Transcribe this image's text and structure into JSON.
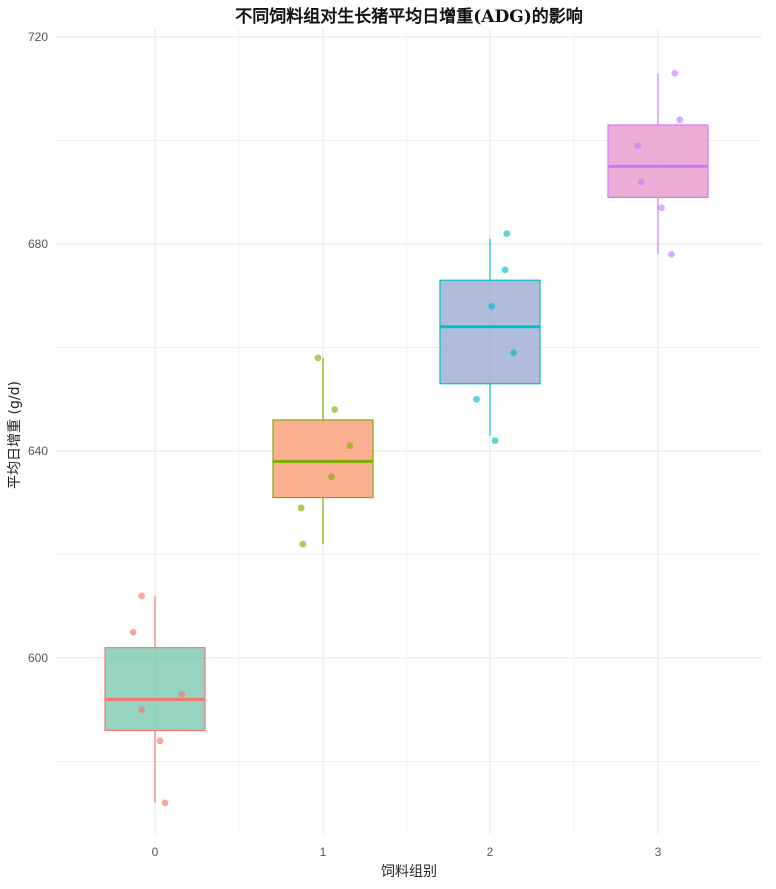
{
  "chart_data": {
    "type": "boxplot",
    "title": "不同饲料组对生长猪平均日增重(ADG)的影响",
    "xlabel": "饲料组别",
    "ylabel": "平均日增重 (g/d)",
    "categories": [
      "0",
      "1",
      "2",
      "3"
    ],
    "ylim": [
      572,
      724
    ],
    "y_ticks": [
      600,
      640,
      680,
      720
    ],
    "grid": true,
    "legend": "none",
    "boxes": [
      {
        "category": "0",
        "q1": 586,
        "median": 592,
        "q3": 602,
        "whisker_low": 572,
        "whisker_high": 612,
        "fill": "#66c2a5",
        "line": "#f8766d"
      },
      {
        "category": "1",
        "q1": 631,
        "median": 638,
        "q3": 646,
        "whisker_low": 622,
        "whisker_high": 658,
        "fill": "#fc8d62",
        "line": "#7cae00"
      },
      {
        "category": "2",
        "q1": 653,
        "median": 664,
        "q3": 673,
        "whisker_low": 643,
        "whisker_high": 681,
        "fill": "#8da0cb",
        "line": "#00bfc4"
      },
      {
        "category": "3",
        "q1": 689,
        "median": 695,
        "q3": 703,
        "whisker_low": 678,
        "whisker_high": 713,
        "fill": "#e78ac3",
        "line": "#c77cff"
      }
    ],
    "points": [
      {
        "category": "0",
        "jitter": -0.13,
        "y": 605
      },
      {
        "category": "0",
        "jitter": -0.08,
        "y": 612
      },
      {
        "category": "0",
        "jitter": -0.08,
        "y": 590
      },
      {
        "category": "0",
        "jitter": 0.16,
        "y": 593
      },
      {
        "category": "0",
        "jitter": 0.03,
        "y": 584
      },
      {
        "category": "0",
        "jitter": 0.06,
        "y": 572
      },
      {
        "category": "1",
        "jitter": -0.03,
        "y": 658
      },
      {
        "category": "1",
        "jitter": 0.07,
        "y": 648
      },
      {
        "category": "1",
        "jitter": 0.16,
        "y": 641
      },
      {
        "category": "1",
        "jitter": 0.05,
        "y": 635
      },
      {
        "category": "1",
        "jitter": -0.13,
        "y": 629
      },
      {
        "category": "1",
        "jitter": -0.12,
        "y": 622
      },
      {
        "category": "2",
        "jitter": 0.1,
        "y": 682
      },
      {
        "category": "2",
        "jitter": 0.09,
        "y": 675
      },
      {
        "category": "2",
        "jitter": 0.01,
        "y": 668
      },
      {
        "category": "2",
        "jitter": 0.14,
        "y": 659
      },
      {
        "category": "2",
        "jitter": -0.08,
        "y": 650
      },
      {
        "category": "2",
        "jitter": 0.03,
        "y": 642
      },
      {
        "category": "3",
        "jitter": 0.1,
        "y": 713
      },
      {
        "category": "3",
        "jitter": 0.13,
        "y": 704
      },
      {
        "category": "3",
        "jitter": -0.12,
        "y": 699
      },
      {
        "category": "3",
        "jitter": -0.1,
        "y": 692
      },
      {
        "category": "3",
        "jitter": 0.02,
        "y": 687
      },
      {
        "category": "3",
        "jitter": 0.08,
        "y": 678
      }
    ]
  }
}
